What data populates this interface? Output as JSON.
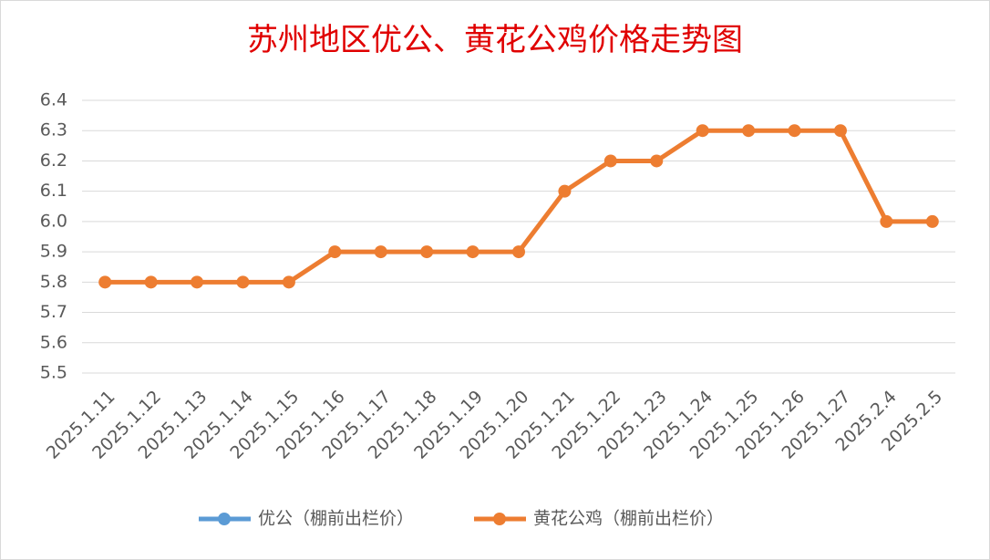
{
  "chart_data": {
    "type": "line",
    "title": "苏州地区优公、黄花公鸡价格走势图",
    "categories": [
      "2025.1.11",
      "2025.1.12",
      "2025.1.13",
      "2025.1.14",
      "2025.1.15",
      "2025.1.16",
      "2025.1.17",
      "2025.1.18",
      "2025.1.19",
      "2025.1.20",
      "2025.1.21",
      "2025.1.22",
      "2025.1.23",
      "2025.1.24",
      "2025.1.25",
      "2025.1.26",
      "2025.1.27",
      "2025.2.4",
      "2025.2.5"
    ],
    "series": [
      {
        "name": "优公（棚前出栏价）",
        "color": "#5b9bd5",
        "values": [
          null,
          null,
          null,
          null,
          null,
          null,
          null,
          null,
          null,
          null,
          null,
          null,
          null,
          null,
          null,
          null,
          null,
          null,
          null
        ]
      },
      {
        "name": "黄花公鸡（棚前出栏价）",
        "color": "#ed7d31",
        "values": [
          5.8,
          5.8,
          5.8,
          5.8,
          5.8,
          5.9,
          5.9,
          5.9,
          5.9,
          5.9,
          6.1,
          6.2,
          6.2,
          6.3,
          6.3,
          6.3,
          6.3,
          6.0,
          6.0
        ]
      }
    ],
    "ylim": [
      5.5,
      6.4
    ],
    "yticks": [
      5.5,
      5.6,
      5.7,
      5.8,
      5.9,
      {
        "value": 6,
        "label": "6.0"
      },
      6.1,
      6.2,
      6.3,
      6.4
    ],
    "grid": true,
    "legend": "bottom"
  }
}
